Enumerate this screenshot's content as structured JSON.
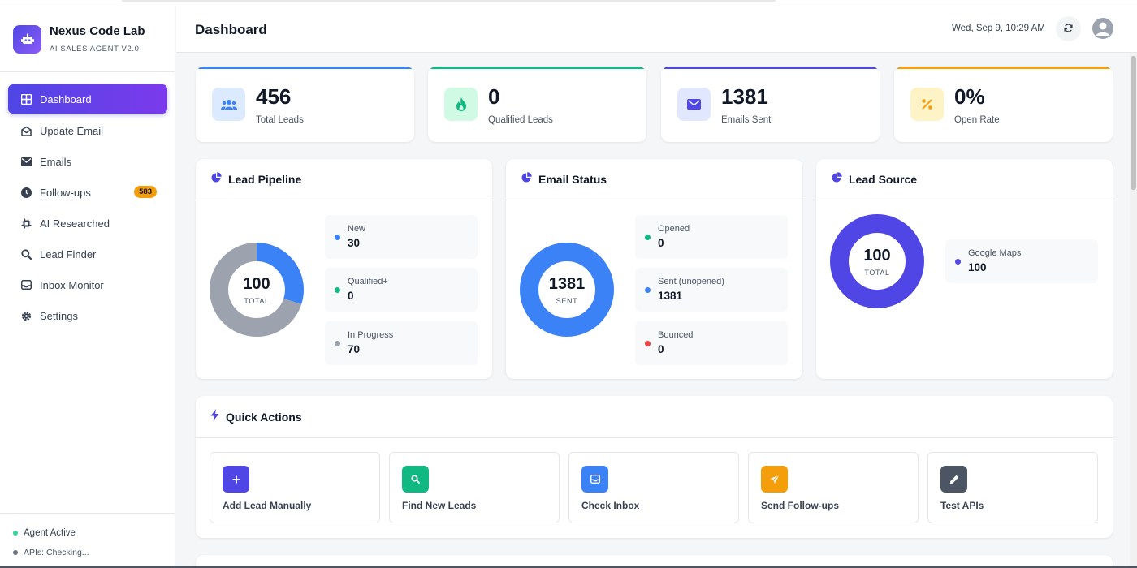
{
  "app": {
    "name": "Nexus Code Lab",
    "subtitle": "AI SALES AGENT V2.0"
  },
  "sidebar": {
    "items": [
      {
        "label": "Dashboard",
        "icon": "grid-icon",
        "active": true
      },
      {
        "label": "Update Email",
        "icon": "envelope-open-icon"
      },
      {
        "label": "Emails",
        "icon": "envelope-icon"
      },
      {
        "label": "Follow-ups",
        "icon": "clock-icon",
        "badge": "583"
      },
      {
        "label": "AI Researched",
        "icon": "brain-icon"
      },
      {
        "label": "Lead Finder",
        "icon": "search-icon"
      },
      {
        "label": "Inbox Monitor",
        "icon": "inbox-icon"
      },
      {
        "label": "Settings",
        "icon": "gear-icon"
      }
    ],
    "footer": {
      "agent_status": "Agent Active",
      "api_status": "APIs: Checking..."
    }
  },
  "header": {
    "title": "Dashboard",
    "datetime": "Wed, Sep 9, 10:29 AM"
  },
  "stats": [
    {
      "value": "456",
      "label": "Total Leads",
      "accent": "#3b82f6",
      "icon": "users-icon"
    },
    {
      "value": "0",
      "label": "Qualified Leads",
      "accent": "#10b981",
      "icon": "fire-icon"
    },
    {
      "value": "1381",
      "label": "Emails Sent",
      "accent": "#4f46e5",
      "icon": "envelope-icon"
    },
    {
      "value": "0%",
      "label": "Open Rate",
      "accent": "#f59e0b",
      "icon": "percent-icon"
    }
  ],
  "panels": {
    "pipeline": {
      "title": "Lead Pipeline",
      "center_value": "100",
      "center_label": "TOTAL",
      "legend": [
        {
          "name": "New",
          "value": "30",
          "color": "#3b82f6"
        },
        {
          "name": "Qualified+",
          "value": "0",
          "color": "#10b981"
        },
        {
          "name": "In Progress",
          "value": "70",
          "color": "#9ca3af"
        }
      ]
    },
    "email_status": {
      "title": "Email Status",
      "center_value": "1381",
      "center_label": "SENT",
      "legend": [
        {
          "name": "Opened",
          "value": "0",
          "color": "#10b981"
        },
        {
          "name": "Sent (unopened)",
          "value": "1381",
          "color": "#3b82f6"
        },
        {
          "name": "Bounced",
          "value": "0",
          "color": "#ef4444"
        }
      ]
    },
    "lead_source": {
      "title": "Lead Source",
      "center_value": "100",
      "center_label": "TOTAL",
      "legend": [
        {
          "name": "Google Maps",
          "value": "100",
          "color": "#4f46e5"
        }
      ]
    }
  },
  "quick_actions": {
    "title": "Quick Actions",
    "buttons": [
      {
        "label": "Add Lead Manually",
        "color": "#4f46e5",
        "icon": "plus-icon"
      },
      {
        "label": "Find New Leads",
        "color": "#10b981",
        "icon": "search-icon"
      },
      {
        "label": "Check Inbox",
        "color": "#3b82f6",
        "icon": "inbox-icon"
      },
      {
        "label": "Send Follow-ups",
        "color": "#f59e0b",
        "icon": "paper-plane-icon"
      },
      {
        "label": "Test APIs",
        "color": "#4b5563",
        "icon": "pencil-icon"
      }
    ]
  }
}
